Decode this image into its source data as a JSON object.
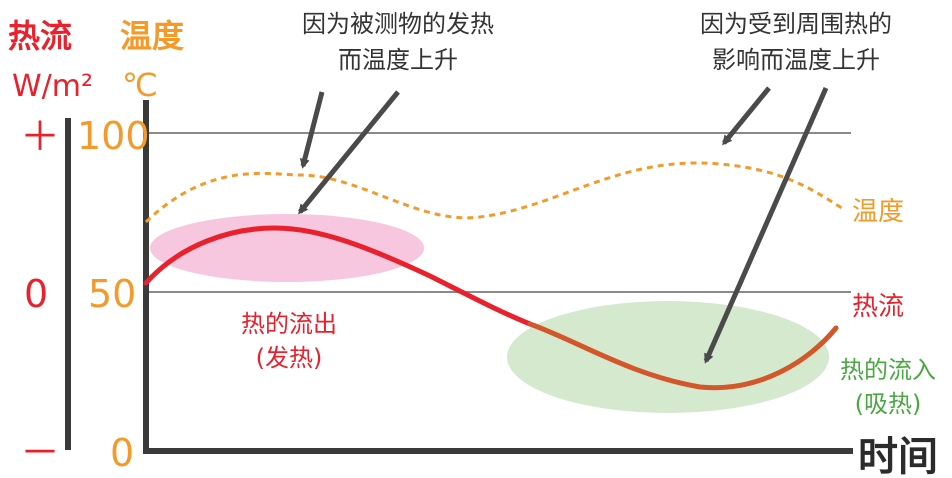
{
  "colors": {
    "heat_flux": "#e8212c",
    "temperature": "#f39a2b",
    "heat_in_text": "#4aa842",
    "heat_in_fill": "#d5e9cf",
    "heat_out_fill": "#f7c6df",
    "axis": "#3a3a3a",
    "gridline": "#8a8a8a",
    "curve_flux_in": "#d2572a"
  },
  "left_axis": {
    "heat_flux_title": "热流",
    "heat_flux_unit": "W/m²",
    "temperature_title": "温度",
    "temperature_unit": "℃",
    "flux_ticks": {
      "plus": "＋",
      "zero": "0",
      "minus": "－"
    },
    "temp_ticks": {
      "high": "100",
      "mid": "50",
      "low": "0"
    }
  },
  "x_axis_label": "时间",
  "annotations": {
    "self_heating": [
      "因为被测物的发热",
      "而温度上升"
    ],
    "ambient_heating": [
      "因为受到周围热的",
      "影响而温度上升"
    ]
  },
  "series_labels": {
    "temperature": "温度",
    "heat_flux": "热流"
  },
  "regions": {
    "heat_out": [
      "热的流出",
      "(发热)"
    ],
    "heat_in": [
      "热的流入",
      "(吸热)"
    ]
  }
}
